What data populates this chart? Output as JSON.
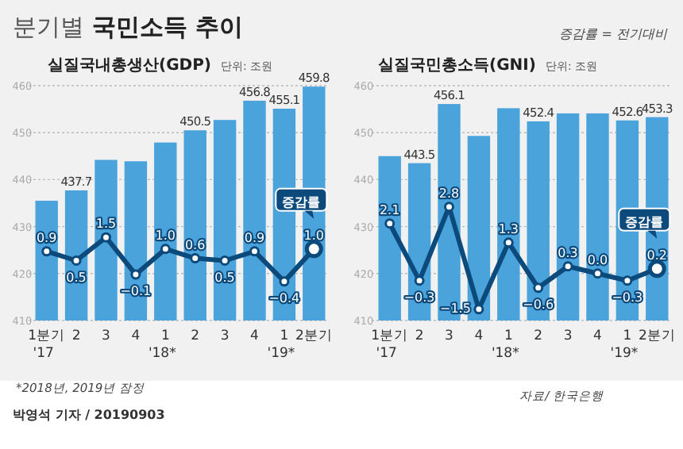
{
  "chart_data": [
    {
      "type": "bar",
      "title": "실질국내총생산(GDP)",
      "subtitle": "단위: 조원",
      "categories": [
        "1분기\n'17",
        "2",
        "3",
        "4",
        "1\n'18*",
        "2",
        "3",
        "4",
        "1\n'19*",
        "2분기"
      ],
      "ylim": [
        410,
        460
      ],
      "yticks": [
        410,
        420,
        430,
        440,
        450,
        460
      ],
      "grid": "y",
      "series": [
        {
          "color": "#4ba3dc",
          "values": [
            435.5,
            437.7,
            444.2,
            443.9,
            447.9,
            450.5,
            452.7,
            456.8,
            455.1,
            459.8
          ],
          "value_labels": [
            null,
            "437.7",
            null,
            null,
            null,
            "450.5",
            null,
            "456.8",
            "455.1",
            "459.8"
          ]
        },
        {
          "type": "line",
          "axis": "y2",
          "color": "#0d4a7c",
          "marker": "circle",
          "line_style": "solid",
          "values": [
            0.9,
            0.5,
            1.5,
            -0.1,
            1.0,
            0.6,
            0.5,
            0.9,
            -0.4,
            1.0
          ],
          "value_labels": [
            "0.9",
            "0.5",
            "1.5",
            "−0.1",
            "1.0",
            "0.6",
            "0.5",
            "0.9",
            "−0.4",
            "1.0"
          ]
        }
      ],
      "annotations": [
        "분기별 국민소득 추이",
        "증감률",
        "*2018년, 2019년 잠정",
        "박영석 기자 / 20190903"
      ]
    },
    {
      "type": "bar",
      "title": "실질국민총소득(GNI)",
      "subtitle": "단위: 조원",
      "categories": [
        "1분기\n'17",
        "2",
        "3",
        "4",
        "1\n'18*",
        "2",
        "3",
        "4",
        "1\n'19*",
        "2분기"
      ],
      "ylim": [
        410,
        460
      ],
      "yticks": [
        410,
        420,
        430,
        440,
        450,
        460
      ],
      "grid": "y",
      "series": [
        {
          "color": "#4ba3dc",
          "values": [
            445.0,
            443.5,
            456.1,
            449.3,
            455.2,
            452.4,
            454.1,
            454.1,
            452.6,
            453.3
          ],
          "value_labels": [
            null,
            "443.5",
            "456.1",
            null,
            null,
            "452.4",
            null,
            null,
            "452.6",
            "453.3"
          ]
        },
        {
          "type": "line",
          "axis": "y2",
          "color": "#0d4a7c",
          "marker": "circle",
          "line_style": "solid",
          "values": [
            2.1,
            -0.3,
            2.8,
            -1.5,
            1.3,
            -0.6,
            0.3,
            0.0,
            -0.3,
            0.2
          ],
          "value_labels": [
            "2.1",
            "−0.3",
            "2.8",
            "−1.5",
            "1.3",
            "−0.6",
            "0.3",
            "0.0",
            "−0.3",
            "0.2"
          ]
        }
      ],
      "annotations": [
        "증감률 = 전기대비",
        "증감률",
        "자료/ 한국은행"
      ]
    }
  ]
}
